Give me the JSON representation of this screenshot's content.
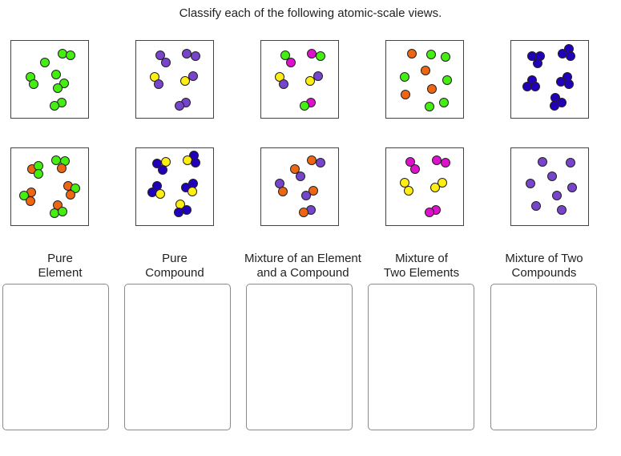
{
  "instructions": "Classify each of the following atomic-scale views.",
  "colors": {
    "green": "#44ee11",
    "orange": "#ee6611",
    "purple": "#7744cc",
    "magenta": "#dd11cc",
    "yellow": "#ffee11",
    "blue": "#2200bb"
  },
  "tiles": [
    {
      "name": "tile-1",
      "atoms": [
        [
          "green",
          78,
          67
        ],
        [
          "green",
          88,
          69
        ],
        [
          "green",
          56,
          78
        ],
        [
          "green",
          38,
          96
        ],
        [
          "green",
          42,
          105
        ],
        [
          "green",
          70,
          93
        ],
        [
          "green",
          80,
          104
        ],
        [
          "green",
          72,
          110
        ],
        [
          "green",
          77,
          128
        ],
        [
          "green",
          68,
          132
        ]
      ]
    },
    {
      "name": "tile-2",
      "atoms": [
        [
          "purple",
          200,
          69
        ],
        [
          "purple",
          207,
          78
        ],
        [
          "purple",
          233,
          67
        ],
        [
          "purple",
          244,
          70
        ],
        [
          "yellow",
          193,
          96
        ],
        [
          "purple",
          198,
          105
        ],
        [
          "yellow",
          231,
          101
        ],
        [
          "purple",
          241,
          95
        ],
        [
          "purple",
          232,
          128
        ],
        [
          "purple",
          224,
          132
        ]
      ]
    },
    {
      "name": "tile-3",
      "atoms": [
        [
          "green",
          356,
          69
        ],
        [
          "magenta",
          363,
          78
        ],
        [
          "magenta",
          389,
          67
        ],
        [
          "green",
          400,
          70
        ],
        [
          "yellow",
          349,
          96
        ],
        [
          "purple",
          354,
          105
        ],
        [
          "yellow",
          387,
          101
        ],
        [
          "purple",
          397,
          95
        ],
        [
          "magenta",
          388,
          128
        ],
        [
          "green",
          380,
          132
        ]
      ]
    },
    {
      "name": "tile-4",
      "atoms": [
        [
          "orange",
          514,
          67
        ],
        [
          "green",
          538,
          68
        ],
        [
          "green",
          556,
          71
        ],
        [
          "orange",
          531,
          88
        ],
        [
          "green",
          505,
          96
        ],
        [
          "green",
          558,
          100
        ],
        [
          "orange",
          539,
          111
        ],
        [
          "orange",
          506,
          118
        ],
        [
          "green",
          554,
          128
        ],
        [
          "green",
          536,
          133
        ]
      ]
    },
    {
      "name": "tile-5",
      "atoms": [
        [
          "blue",
          664,
          70
        ],
        [
          "blue",
          674,
          70
        ],
        [
          "blue",
          671,
          79
        ],
        [
          "blue",
          702,
          67
        ],
        [
          "blue",
          710,
          61
        ],
        [
          "blue",
          712,
          70
        ],
        [
          "blue",
          664,
          100
        ],
        [
          "blue",
          658,
          108
        ],
        [
          "blue",
          668,
          108
        ],
        [
          "blue",
          708,
          96
        ],
        [
          "blue",
          700,
          102
        ],
        [
          "blue",
          710,
          105
        ],
        [
          "blue",
          693,
          122
        ],
        [
          "blue",
          701,
          128
        ],
        [
          "blue",
          692,
          132
        ]
      ]
    },
    {
      "name": "tile-6",
      "atoms": [
        [
          "orange",
          40,
          211
        ],
        [
          "green",
          48,
          207
        ],
        [
          "green",
          48,
          217
        ],
        [
          "green",
          70,
          200
        ],
        [
          "green",
          81,
          201
        ],
        [
          "orange",
          77,
          210
        ],
        [
          "orange",
          39,
          240
        ],
        [
          "green",
          30,
          244
        ],
        [
          "orange",
          38,
          251
        ],
        [
          "orange",
          85,
          232
        ],
        [
          "green",
          94,
          235
        ],
        [
          "orange",
          88,
          243
        ],
        [
          "orange",
          72,
          256
        ],
        [
          "green",
          68,
          266
        ],
        [
          "green",
          78,
          264
        ]
      ]
    },
    {
      "name": "tile-7",
      "atoms": [
        [
          "blue",
          196,
          204
        ],
        [
          "yellow",
          207,
          202
        ],
        [
          "blue",
          203,
          212
        ],
        [
          "blue",
          242,
          194
        ],
        [
          "yellow",
          234,
          200
        ],
        [
          "blue",
          244,
          203
        ],
        [
          "blue",
          196,
          232
        ],
        [
          "blue",
          190,
          240
        ],
        [
          "yellow",
          200,
          242
        ],
        [
          "blue",
          232,
          234
        ],
        [
          "blue",
          241,
          229
        ],
        [
          "yellow",
          240,
          239
        ],
        [
          "yellow",
          225,
          255
        ],
        [
          "blue",
          233,
          262
        ],
        [
          "blue",
          223,
          265
        ]
      ]
    },
    {
      "name": "tile-8",
      "atoms": [
        [
          "orange",
          368,
          211
        ],
        [
          "purple",
          375,
          220
        ],
        [
          "orange",
          389,
          200
        ],
        [
          "purple",
          400,
          203
        ],
        [
          "purple",
          349,
          229
        ],
        [
          "orange",
          353,
          239
        ],
        [
          "orange",
          391,
          238
        ],
        [
          "purple",
          382,
          244
        ],
        [
          "purple",
          388,
          262
        ],
        [
          "orange",
          379,
          265
        ]
      ]
    },
    {
      "name": "tile-9",
      "atoms": [
        [
          "magenta",
          512,
          202
        ],
        [
          "magenta",
          518,
          211
        ],
        [
          "magenta",
          545,
          200
        ],
        [
          "magenta",
          556,
          203
        ],
        [
          "yellow",
          505,
          228
        ],
        [
          "yellow",
          510,
          238
        ],
        [
          "yellow",
          552,
          228
        ],
        [
          "yellow",
          543,
          234
        ],
        [
          "magenta",
          544,
          262
        ],
        [
          "magenta",
          536,
          265
        ]
      ]
    },
    {
      "name": "tile-10",
      "atoms": [
        [
          "purple",
          677,
          202
        ],
        [
          "purple",
          712,
          203
        ],
        [
          "purple",
          689,
          220
        ],
        [
          "purple",
          662,
          229
        ],
        [
          "purple",
          714,
          234
        ],
        [
          "purple",
          695,
          244
        ],
        [
          "purple",
          669,
          257
        ],
        [
          "purple",
          701,
          262
        ]
      ]
    }
  ],
  "bins": [
    {
      "label": "Pure\nElement"
    },
    {
      "label": "Pure\nCompound"
    },
    {
      "label": "Mixture of an Element\nand a Compound"
    },
    {
      "label": "Mixture of\nTwo Elements"
    },
    {
      "label": "Mixture of Two\nCompounds"
    }
  ]
}
